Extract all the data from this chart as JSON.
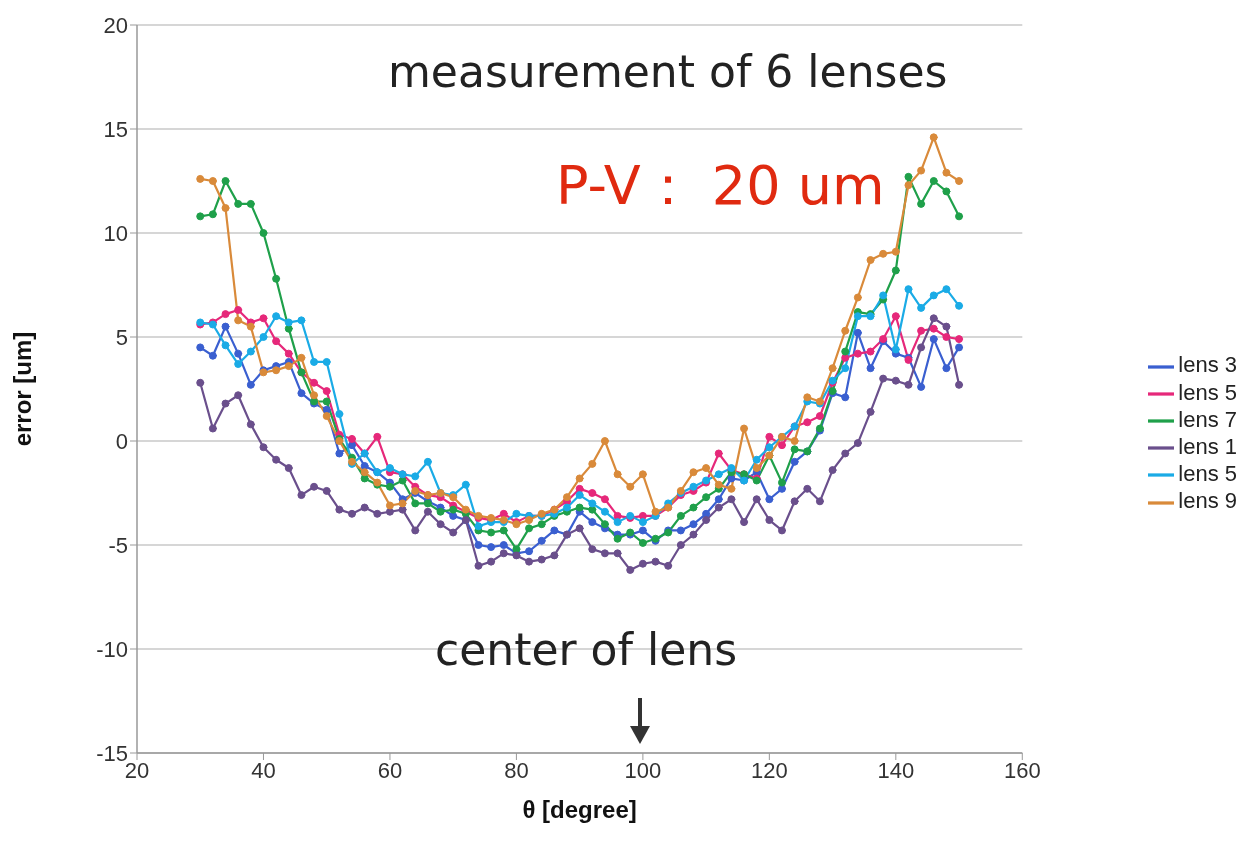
{
  "chart_data": {
    "type": "line",
    "xlabel": "θ [degree]",
    "ylabel": "error [um]",
    "x": [
      30,
      32,
      34,
      36,
      38,
      40,
      42,
      44,
      46,
      48,
      50,
      52,
      54,
      56,
      58,
      60,
      62,
      64,
      66,
      68,
      70,
      72,
      74,
      76,
      78,
      80,
      82,
      84,
      86,
      88,
      90,
      92,
      94,
      96,
      98,
      100,
      102,
      104,
      106,
      108,
      110,
      112,
      114,
      116,
      118,
      120,
      122,
      124,
      126,
      128,
      130,
      132,
      134,
      136,
      138,
      140,
      142,
      144,
      146,
      148,
      150
    ],
    "xlim": [
      20,
      160
    ],
    "xticks": [
      20,
      40,
      60,
      80,
      100,
      120,
      140,
      160
    ],
    "ylim": [
      -15,
      20
    ],
    "yticks": [
      -15,
      -10,
      -5,
      0,
      5,
      10,
      15,
      20
    ],
    "grid": "y",
    "legend": "right",
    "marker": "circle",
    "line_style": "solid",
    "annotations": [
      "measurement of 6 lenses",
      "P-V： 20 um",
      "center of lens"
    ],
    "series": [
      {
        "name": "lens 3",
        "color": "#3a5fd0",
        "values": [
          4.5,
          4.1,
          5.5,
          4.2,
          2.7,
          3.4,
          3.6,
          3.8,
          2.3,
          1.8,
          1.5,
          -0.6,
          -0.2,
          -1.2,
          -1.5,
          -2.0,
          -2.8,
          -2.5,
          -2.9,
          -3.2,
          -3.6,
          -3.8,
          -5.0,
          -5.1,
          -5.0,
          -5.4,
          -5.3,
          -4.8,
          -4.3,
          -4.5,
          -3.4,
          -3.9,
          -4.2,
          -4.5,
          -4.5,
          -4.3,
          -4.8,
          -4.3,
          -4.3,
          -4.0,
          -3.5,
          -2.8,
          -1.8,
          -1.9,
          -1.5,
          -2.8,
          -2.3,
          -1.0,
          -0.5,
          0.5,
          2.3,
          2.1,
          5.2,
          3.5,
          4.8,
          4.2,
          4.0,
          2.6,
          4.9,
          3.5,
          4.5
        ]
      },
      {
        "name": "lens 5",
        "color": "#e6287a",
        "values": [
          5.6,
          5.7,
          6.1,
          6.3,
          5.7,
          5.9,
          4.8,
          4.2,
          3.3,
          2.8,
          2.4,
          0.3,
          0.1,
          -0.6,
          0.2,
          -1.5,
          -1.6,
          -2.2,
          -2.6,
          -2.7,
          -3.1,
          -3.4,
          -3.7,
          -3.8,
          -3.5,
          -3.9,
          -3.6,
          -3.6,
          -3.3,
          -2.9,
          -2.3,
          -2.5,
          -2.8,
          -3.6,
          -3.7,
          -3.6,
          -3.6,
          -3.2,
          -2.6,
          -2.4,
          -2.0,
          -0.6,
          -1.4,
          -1.6,
          -1.8,
          0.2,
          -0.2,
          0.7,
          0.9,
          1.2,
          2.8,
          4.0,
          4.2,
          4.3,
          4.9,
          6.0,
          3.9,
          5.3,
          5.4,
          5.0,
          4.9
        ]
      },
      {
        "name": "lens 7",
        "color": "#1fa04a",
        "values": [
          10.8,
          10.9,
          12.5,
          11.4,
          11.4,
          10.0,
          7.8,
          5.4,
          3.3,
          1.9,
          1.9,
          0.1,
          -0.8,
          -1.8,
          -2.1,
          -2.2,
          -1.9,
          -3.0,
          -3.0,
          -3.4,
          -3.3,
          -3.5,
          -4.3,
          -4.4,
          -4.3,
          -5.2,
          -4.2,
          -4.0,
          -3.6,
          -3.4,
          -3.2,
          -3.3,
          -4.0,
          -4.7,
          -4.4,
          -4.9,
          -4.7,
          -4.4,
          -3.6,
          -3.2,
          -2.7,
          -2.3,
          -1.5,
          -1.6,
          -1.9,
          -0.7,
          -2.0,
          -0.4,
          -0.5,
          0.6,
          2.4,
          4.3,
          6.2,
          6.1,
          6.8,
          8.2,
          12.7,
          11.4,
          12.5,
          12.0,
          10.8
        ]
      },
      {
        "name": "lens 1",
        "color": "#6a4f8c",
        "values": [
          2.8,
          0.6,
          1.8,
          2.2,
          0.8,
          -0.3,
          -0.9,
          -1.3,
          -2.6,
          -2.2,
          -2.4,
          -3.3,
          -3.5,
          -3.2,
          -3.5,
          -3.4,
          -3.3,
          -4.3,
          -3.4,
          -4.0,
          -4.4,
          -3.8,
          -6.0,
          -5.8,
          -5.4,
          -5.5,
          -5.8,
          -5.7,
          -5.5,
          -4.5,
          -4.2,
          -5.2,
          -5.4,
          -5.4,
          -6.2,
          -5.9,
          -5.8,
          -6.0,
          -5.0,
          -4.5,
          -3.8,
          -3.2,
          -2.8,
          -3.9,
          -2.8,
          -3.8,
          -4.3,
          -2.9,
          -2.3,
          -2.9,
          -1.4,
          -0.6,
          -0.1,
          1.4,
          3.0,
          2.9,
          2.7,
          4.5,
          5.9,
          5.5,
          2.7
        ]
      },
      {
        "name": "lens 5",
        "color": "#1aabe6",
        "values": [
          5.7,
          5.6,
          4.6,
          3.7,
          4.3,
          5.0,
          6.0,
          5.7,
          5.8,
          3.8,
          3.8,
          1.3,
          -1.1,
          -0.6,
          -1.5,
          -1.3,
          -1.6,
          -1.7,
          -1.0,
          -2.5,
          -2.6,
          -2.1,
          -4.1,
          -3.9,
          -3.9,
          -3.5,
          -3.6,
          -3.6,
          -3.5,
          -3.2,
          -2.6,
          -3.0,
          -3.4,
          -3.9,
          -3.6,
          -3.9,
          -3.6,
          -3.0,
          -2.5,
          -2.2,
          -1.9,
          -1.6,
          -1.3,
          -1.9,
          -0.9,
          -0.3,
          0.2,
          0.7,
          1.9,
          1.8,
          2.9,
          3.5,
          6.0,
          6.0,
          7.0,
          4.4,
          7.3,
          6.4,
          7.0,
          7.3,
          6.5
        ]
      },
      {
        "name": "lens 9",
        "color": "#d98a3a",
        "values": [
          12.6,
          12.5,
          11.2,
          5.8,
          5.5,
          3.3,
          3.4,
          3.6,
          4.0,
          2.2,
          1.2,
          0.0,
          -1.0,
          -1.5,
          -2.0,
          -3.1,
          -3.0,
          -2.4,
          -2.6,
          -2.5,
          -2.7,
          -3.3,
          -3.6,
          -3.7,
          -3.8,
          -4.0,
          -3.8,
          -3.5,
          -3.3,
          -2.7,
          -1.8,
          -1.1,
          0.0,
          -1.6,
          -2.2,
          -1.6,
          -3.4,
          -3.2,
          -2.4,
          -1.5,
          -1.3,
          -2.1,
          -2.3,
          0.6,
          -1.3,
          -0.7,
          0.2,
          0.0,
          2.1,
          1.9,
          3.5,
          5.3,
          6.9,
          8.7,
          9.0,
          9.1,
          12.3,
          13.0,
          14.6,
          12.9,
          12.5
        ]
      }
    ]
  }
}
